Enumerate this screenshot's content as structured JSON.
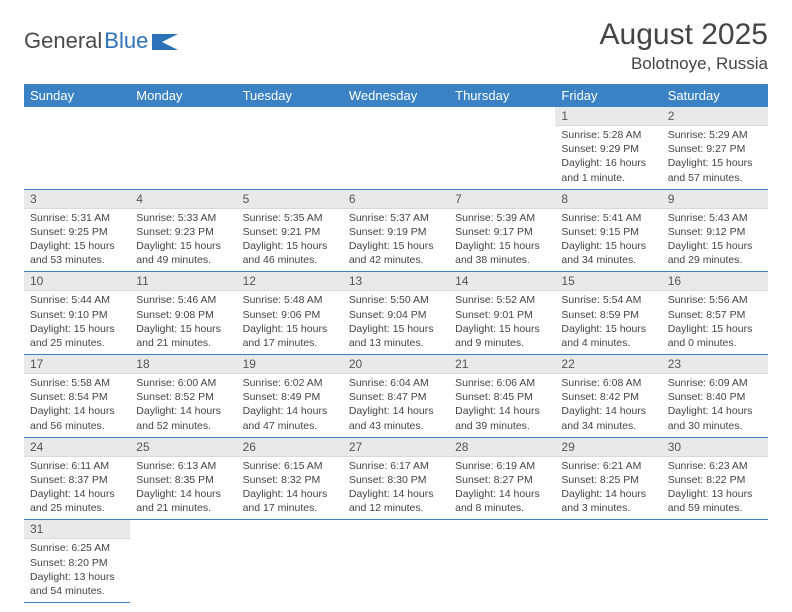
{
  "brand": {
    "part1": "General",
    "part2": "Blue"
  },
  "title": "August 2025",
  "location": "Bolotnoye, Russia",
  "day_headers": [
    "Sunday",
    "Monday",
    "Tuesday",
    "Wednesday",
    "Thursday",
    "Friday",
    "Saturday"
  ],
  "colors": {
    "header_bg": "#3a82c4",
    "header_text": "#ffffff",
    "day_bg": "#e9e9e9",
    "row_divider": "#3a82c4"
  },
  "grid": [
    [
      null,
      null,
      null,
      null,
      null,
      {
        "n": "1",
        "sr": "Sunrise: 5:28 AM",
        "ss": "Sunset: 9:29 PM",
        "dl": "Daylight: 16 hours and 1 minute."
      },
      {
        "n": "2",
        "sr": "Sunrise: 5:29 AM",
        "ss": "Sunset: 9:27 PM",
        "dl": "Daylight: 15 hours and 57 minutes."
      }
    ],
    [
      {
        "n": "3",
        "sr": "Sunrise: 5:31 AM",
        "ss": "Sunset: 9:25 PM",
        "dl": "Daylight: 15 hours and 53 minutes."
      },
      {
        "n": "4",
        "sr": "Sunrise: 5:33 AM",
        "ss": "Sunset: 9:23 PM",
        "dl": "Daylight: 15 hours and 49 minutes."
      },
      {
        "n": "5",
        "sr": "Sunrise: 5:35 AM",
        "ss": "Sunset: 9:21 PM",
        "dl": "Daylight: 15 hours and 46 minutes."
      },
      {
        "n": "6",
        "sr": "Sunrise: 5:37 AM",
        "ss": "Sunset: 9:19 PM",
        "dl": "Daylight: 15 hours and 42 minutes."
      },
      {
        "n": "7",
        "sr": "Sunrise: 5:39 AM",
        "ss": "Sunset: 9:17 PM",
        "dl": "Daylight: 15 hours and 38 minutes."
      },
      {
        "n": "8",
        "sr": "Sunrise: 5:41 AM",
        "ss": "Sunset: 9:15 PM",
        "dl": "Daylight: 15 hours and 34 minutes."
      },
      {
        "n": "9",
        "sr": "Sunrise: 5:43 AM",
        "ss": "Sunset: 9:12 PM",
        "dl": "Daylight: 15 hours and 29 minutes."
      }
    ],
    [
      {
        "n": "10",
        "sr": "Sunrise: 5:44 AM",
        "ss": "Sunset: 9:10 PM",
        "dl": "Daylight: 15 hours and 25 minutes."
      },
      {
        "n": "11",
        "sr": "Sunrise: 5:46 AM",
        "ss": "Sunset: 9:08 PM",
        "dl": "Daylight: 15 hours and 21 minutes."
      },
      {
        "n": "12",
        "sr": "Sunrise: 5:48 AM",
        "ss": "Sunset: 9:06 PM",
        "dl": "Daylight: 15 hours and 17 minutes."
      },
      {
        "n": "13",
        "sr": "Sunrise: 5:50 AM",
        "ss": "Sunset: 9:04 PM",
        "dl": "Daylight: 15 hours and 13 minutes."
      },
      {
        "n": "14",
        "sr": "Sunrise: 5:52 AM",
        "ss": "Sunset: 9:01 PM",
        "dl": "Daylight: 15 hours and 9 minutes."
      },
      {
        "n": "15",
        "sr": "Sunrise: 5:54 AM",
        "ss": "Sunset: 8:59 PM",
        "dl": "Daylight: 15 hours and 4 minutes."
      },
      {
        "n": "16",
        "sr": "Sunrise: 5:56 AM",
        "ss": "Sunset: 8:57 PM",
        "dl": "Daylight: 15 hours and 0 minutes."
      }
    ],
    [
      {
        "n": "17",
        "sr": "Sunrise: 5:58 AM",
        "ss": "Sunset: 8:54 PM",
        "dl": "Daylight: 14 hours and 56 minutes."
      },
      {
        "n": "18",
        "sr": "Sunrise: 6:00 AM",
        "ss": "Sunset: 8:52 PM",
        "dl": "Daylight: 14 hours and 52 minutes."
      },
      {
        "n": "19",
        "sr": "Sunrise: 6:02 AM",
        "ss": "Sunset: 8:49 PM",
        "dl": "Daylight: 14 hours and 47 minutes."
      },
      {
        "n": "20",
        "sr": "Sunrise: 6:04 AM",
        "ss": "Sunset: 8:47 PM",
        "dl": "Daylight: 14 hours and 43 minutes."
      },
      {
        "n": "21",
        "sr": "Sunrise: 6:06 AM",
        "ss": "Sunset: 8:45 PM",
        "dl": "Daylight: 14 hours and 39 minutes."
      },
      {
        "n": "22",
        "sr": "Sunrise: 6:08 AM",
        "ss": "Sunset: 8:42 PM",
        "dl": "Daylight: 14 hours and 34 minutes."
      },
      {
        "n": "23",
        "sr": "Sunrise: 6:09 AM",
        "ss": "Sunset: 8:40 PM",
        "dl": "Daylight: 14 hours and 30 minutes."
      }
    ],
    [
      {
        "n": "24",
        "sr": "Sunrise: 6:11 AM",
        "ss": "Sunset: 8:37 PM",
        "dl": "Daylight: 14 hours and 25 minutes."
      },
      {
        "n": "25",
        "sr": "Sunrise: 6:13 AM",
        "ss": "Sunset: 8:35 PM",
        "dl": "Daylight: 14 hours and 21 minutes."
      },
      {
        "n": "26",
        "sr": "Sunrise: 6:15 AM",
        "ss": "Sunset: 8:32 PM",
        "dl": "Daylight: 14 hours and 17 minutes."
      },
      {
        "n": "27",
        "sr": "Sunrise: 6:17 AM",
        "ss": "Sunset: 8:30 PM",
        "dl": "Daylight: 14 hours and 12 minutes."
      },
      {
        "n": "28",
        "sr": "Sunrise: 6:19 AM",
        "ss": "Sunset: 8:27 PM",
        "dl": "Daylight: 14 hours and 8 minutes."
      },
      {
        "n": "29",
        "sr": "Sunrise: 6:21 AM",
        "ss": "Sunset: 8:25 PM",
        "dl": "Daylight: 14 hours and 3 minutes."
      },
      {
        "n": "30",
        "sr": "Sunrise: 6:23 AM",
        "ss": "Sunset: 8:22 PM",
        "dl": "Daylight: 13 hours and 59 minutes."
      }
    ],
    [
      {
        "n": "31",
        "sr": "Sunrise: 6:25 AM",
        "ss": "Sunset: 8:20 PM",
        "dl": "Daylight: 13 hours and 54 minutes."
      },
      null,
      null,
      null,
      null,
      null,
      null
    ]
  ]
}
